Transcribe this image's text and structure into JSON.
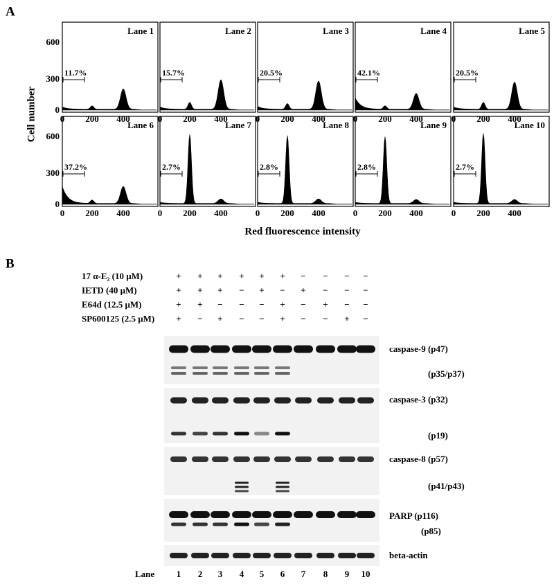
{
  "panel_a": {
    "label": "A",
    "y_axis_label": "Cell number",
    "x_axis_label": "Red fluorescence intensity",
    "yticks": [
      "600",
      "300",
      "0"
    ],
    "xticks": [
      "0",
      "200",
      "400"
    ],
    "lanes": [
      {
        "title": "Lane 1",
        "percent": "11.7%"
      },
      {
        "title": "Lane 2",
        "percent": "15.7%"
      },
      {
        "title": "Lane 3",
        "percent": "20.5%"
      },
      {
        "title": "Lane 4",
        "percent": "42.1%"
      },
      {
        "title": "Lane 5",
        "percent": "20.5%"
      },
      {
        "title": "Lane 6",
        "percent": "37.2%"
      },
      {
        "title": "Lane 7",
        "percent": "2.7%"
      },
      {
        "title": "Lane 8",
        "percent": "2.8%"
      },
      {
        "title": "Lane 9",
        "percent": "2.8%"
      },
      {
        "title": "Lane 10",
        "percent": "2.7%"
      }
    ]
  },
  "panel_b": {
    "label": "B",
    "treatments": [
      {
        "name": "17 α-E₂ (10 μM)",
        "signs": [
          "+",
          "+",
          "+",
          "+",
          "+",
          "+",
          "−",
          "−",
          "−",
          "−"
        ]
      },
      {
        "name": "IETD (40 μM)",
        "signs": [
          "+",
          "+",
          "+",
          "−",
          "+",
          "−",
          "+",
          "−",
          "−",
          "−"
        ]
      },
      {
        "name": "E64d (12.5 μM)",
        "signs": [
          "+",
          "+",
          "−",
          "−",
          "−",
          "+",
          "−",
          "+",
          "−",
          "−"
        ]
      },
      {
        "name": "SP600125 (2.5 μM)",
        "signs": [
          "+",
          "−",
          "+",
          "−",
          "−",
          "+",
          "−",
          "−",
          "+",
          "−"
        ]
      }
    ],
    "bands": [
      "caspase-9 (p47)",
      "(p35/p37)",
      "caspase-3 (p32)",
      "(p19)",
      "caspase-8 (p57)",
      "(p41/p43)",
      "PARP (p116)",
      "(p85)",
      "beta-actin"
    ],
    "lane_label": "Lane",
    "lane_numbers": [
      "1",
      "2",
      "3",
      "4",
      "5",
      "6",
      "7",
      "8",
      "9",
      "10"
    ]
  }
}
